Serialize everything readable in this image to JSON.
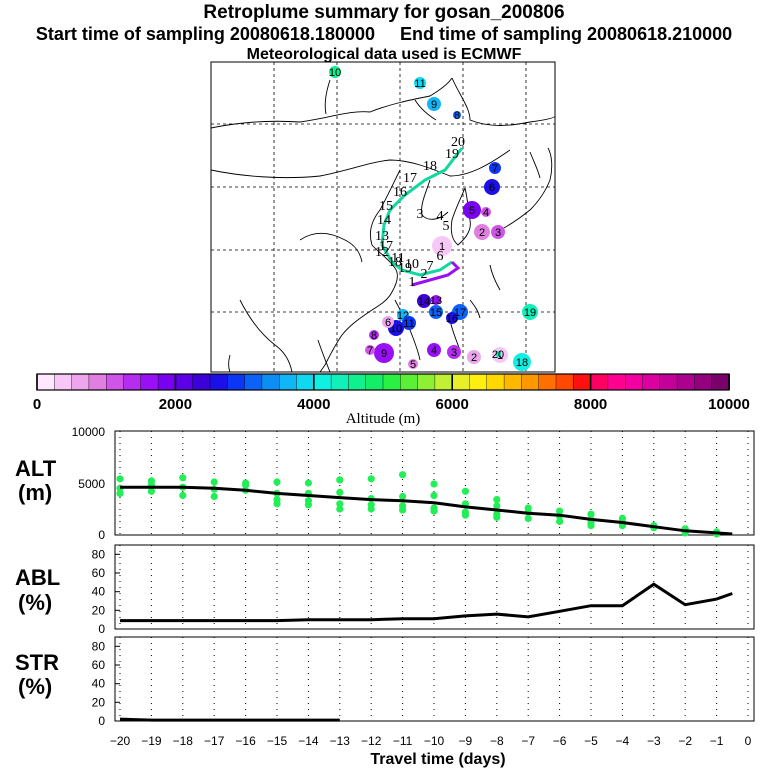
{
  "header": {
    "title": "Retroplume summary for gosan_200806",
    "sampling": "Start time of sampling 20080618.180000     End time of sampling 20080618.210000",
    "met": "Meteorological data used is ECMWF"
  },
  "colorbar": {
    "colors": [
      "#ffe8ff",
      "#f7c8f7",
      "#eca6ec",
      "#e07fe0",
      "#cf55e6",
      "#b42ef0",
      "#9a10f5",
      "#7a00f0",
      "#5c00e8",
      "#3c00d8",
      "#1c10e6",
      "#0c36f5",
      "#0a62f7",
      "#0c8ef5",
      "#10b6f5",
      "#10d8ef",
      "#10f0e2",
      "#10f0b8",
      "#10f08e",
      "#14ee66",
      "#2af044",
      "#5af038",
      "#8ef034",
      "#c2f034",
      "#e8ef28",
      "#ffef10",
      "#ffd800",
      "#ffb800",
      "#ff9800",
      "#ff7000",
      "#ff4800",
      "#ff1010",
      "#ff0062",
      "#ff0090",
      "#f200a0",
      "#dd00a0",
      "#c4009a",
      "#ac0090",
      "#94007e",
      "#7a006a"
    ],
    "ticks": [
      "0",
      "2000",
      "4000",
      "6000",
      "8000",
      "10000"
    ],
    "label": "Altitude (m)"
  },
  "panels": {
    "alt": {
      "label1": "ALT",
      "label2": "(m)",
      "yticks": [
        "0",
        "5000",
        "10000"
      ]
    },
    "abl": {
      "label1": "ABL",
      "label2": "(%)",
      "yticks": [
        "0",
        "20",
        "40",
        "60",
        "80"
      ]
    },
    "str": {
      "label1": "STR",
      "label2": "(%)",
      "yticks": [
        "0",
        "20",
        "40",
        "60",
        "80"
      ]
    }
  },
  "xaxis": {
    "label": "Travel time (days)",
    "ticks": [
      "−20",
      "−19",
      "−18",
      "−17",
      "−16",
      "−15",
      "−14",
      "−13",
      "−12",
      "−11",
      "−10",
      "−9",
      "−8",
      "−7",
      "−6",
      "−5",
      "−4",
      "−3",
      "−2",
      "−1",
      "0"
    ]
  },
  "map_labels": [
    "10",
    "11",
    "9",
    "8",
    "20",
    "19",
    "18",
    "17",
    "16",
    "15",
    "14",
    "13",
    "12",
    "11",
    "10",
    "7",
    "6",
    "5",
    "4",
    "3",
    "2",
    "1",
    "19",
    "18",
    "17",
    "16",
    "15",
    "14",
    "13",
    "12",
    "11",
    "10",
    "9",
    "8",
    "7",
    "6",
    "5",
    "4",
    "3",
    "2",
    "1"
  ],
  "chart_data": [
    {
      "type": "scatter",
      "title": "Retroplume summary for gosan_200806",
      "name": "map",
      "description_note": "clusters positions along the back-trajectory, numbered by day",
      "clusters": [
        {
          "label": "10",
          "alt": 4700
        },
        {
          "label": "11",
          "alt": 3900
        },
        {
          "label": "9",
          "alt": 3700
        },
        {
          "label": "8",
          "alt": 3000
        },
        {
          "label": "7",
          "alt": 2900
        },
        {
          "label": "6",
          "alt": 2600
        },
        {
          "label": "5",
          "alt": 1800
        },
        {
          "label": "4",
          "alt": 1200
        },
        {
          "label": "3",
          "alt": 1100
        },
        {
          "label": "2",
          "alt": 800
        },
        {
          "label": "1",
          "alt": 400
        },
        {
          "label": "19",
          "alt": 4400
        },
        {
          "label": "18",
          "alt": 4000
        },
        {
          "label": "17",
          "alt": 3200
        },
        {
          "label": "16",
          "alt": 2700
        },
        {
          "label": "15",
          "alt": 3000
        },
        {
          "label": "14",
          "alt": 2400
        },
        {
          "label": "13",
          "alt": 1500
        },
        {
          "label": "12",
          "alt": 3500
        },
        {
          "label": "11",
          "alt": 2800
        },
        {
          "label": "10",
          "alt": 2500
        },
        {
          "label": "9",
          "alt": 1600
        },
        {
          "label": "8",
          "alt": 1300
        },
        {
          "label": "7",
          "alt": 1200
        },
        {
          "label": "6",
          "alt": 500
        },
        {
          "label": "5",
          "alt": 900
        },
        {
          "label": "4",
          "alt": 1500
        },
        {
          "label": "3",
          "alt": 1300
        },
        {
          "label": "2",
          "alt": 600
        },
        {
          "label": "1",
          "alt": 400
        },
        {
          "label": "20",
          "alt": 4300
        }
      ]
    },
    {
      "type": "line",
      "name": "ALT",
      "xlabel": "Travel time (days)",
      "ylabel": "ALT (m)",
      "xlim": [
        -20,
        0
      ],
      "ylim": [
        0,
        10000
      ],
      "x": [
        -20,
        -19,
        -18,
        -17,
        -16,
        -15,
        -14,
        -13,
        -12,
        -11,
        -10,
        -9,
        -8,
        -7,
        -6,
        -5,
        -4,
        -3,
        -2,
        -1,
        -0.5
      ],
      "mean": [
        4600,
        4600,
        4600,
        4500,
        4300,
        4000,
        3800,
        3600,
        3400,
        3300,
        3100,
        2700,
        2400,
        2100,
        1900,
        1500,
        1200,
        800,
        400,
        200,
        100
      ],
      "points": [
        [
          -20,
          5400
        ],
        [
          -20,
          4500
        ],
        [
          -20,
          4000
        ],
        [
          -19,
          5200
        ],
        [
          -19,
          4800
        ],
        [
          -19,
          4200
        ],
        [
          -18,
          5500
        ],
        [
          -18,
          4600
        ],
        [
          -18,
          3800
        ],
        [
          -17,
          5100
        ],
        [
          -17,
          4400
        ],
        [
          -17,
          3700
        ],
        [
          -16,
          5000
        ],
        [
          -16,
          4800
        ],
        [
          -16,
          4300
        ],
        [
          -15,
          5100
        ],
        [
          -15,
          4000
        ],
        [
          -15,
          3400
        ],
        [
          -15,
          3000
        ],
        [
          -14,
          5000
        ],
        [
          -14,
          4000
        ],
        [
          -14,
          3300
        ],
        [
          -14,
          2900
        ],
        [
          -13,
          5300
        ],
        [
          -13,
          4100
        ],
        [
          -13,
          3000
        ],
        [
          -13,
          2500
        ],
        [
          -12,
          5400
        ],
        [
          -12,
          3500
        ],
        [
          -12,
          2500
        ],
        [
          -12,
          2900
        ],
        [
          -11,
          5800
        ],
        [
          -11,
          3700
        ],
        [
          -11,
          2800
        ],
        [
          -11,
          2400
        ],
        [
          -10,
          4900
        ],
        [
          -10,
          3800
        ],
        [
          -10,
          2300
        ],
        [
          -10,
          2600
        ],
        [
          -9,
          4200
        ],
        [
          -9,
          3000
        ],
        [
          -9,
          2200
        ],
        [
          -9,
          1900
        ],
        [
          -8,
          3400
        ],
        [
          -8,
          2800
        ],
        [
          -8,
          2000
        ],
        [
          -8,
          1700
        ],
        [
          -7,
          2600
        ],
        [
          -7,
          2200
        ],
        [
          -7,
          1600
        ],
        [
          -6,
          2300
        ],
        [
          -6,
          1800
        ],
        [
          -6,
          1300
        ],
        [
          -5,
          2000
        ],
        [
          -5,
          1500
        ],
        [
          -5,
          1200
        ],
        [
          -5,
          900
        ],
        [
          -4,
          1600
        ],
        [
          -4,
          1200
        ],
        [
          -4,
          900
        ],
        [
          -3,
          900
        ],
        [
          -3,
          700
        ],
        [
          -2,
          600
        ],
        [
          -2,
          400
        ],
        [
          -2,
          200
        ],
        [
          -1,
          300
        ],
        [
          -1,
          100
        ]
      ]
    },
    {
      "type": "line",
      "name": "ABL",
      "xlabel": "Travel time (days)",
      "ylabel": "ABL (%)",
      "xlim": [
        -20,
        0
      ],
      "ylim": [
        0,
        90
      ],
      "x": [
        -20,
        -19,
        -18,
        -17,
        -16,
        -15,
        -14,
        -13,
        -12,
        -11,
        -10,
        -9,
        -8,
        -7,
        -6,
        -5,
        -4,
        -3,
        -2,
        -1,
        -0.5
      ],
      "values": [
        9,
        9,
        9,
        9,
        9,
        9,
        10,
        10,
        10,
        11,
        11,
        14,
        16,
        13,
        19,
        25,
        25,
        48,
        26,
        32,
        38
      ]
    },
    {
      "type": "line",
      "name": "STR",
      "xlabel": "Travel time (days)",
      "ylabel": "STR (%)",
      "xlim": [
        -20,
        0
      ],
      "ylim": [
        0,
        90
      ],
      "x": [
        -20,
        -19,
        -18,
        -17,
        -16,
        -15,
        -14,
        -13
      ],
      "values": [
        2,
        1,
        1,
        1,
        1,
        1,
        1,
        1
      ]
    }
  ]
}
